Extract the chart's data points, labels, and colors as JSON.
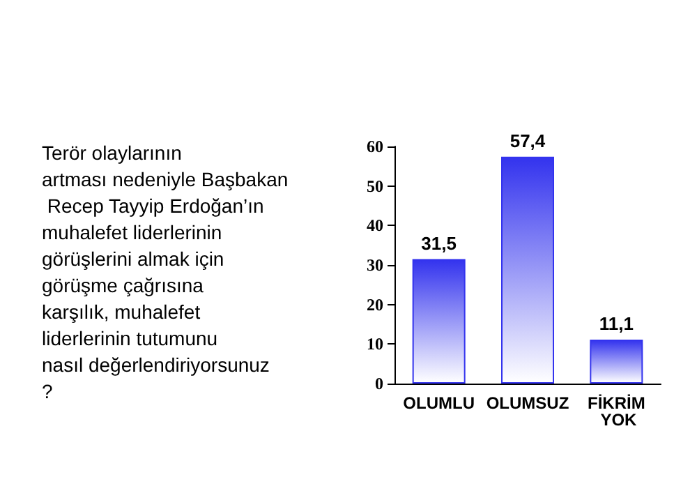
{
  "chart_data": {
    "type": "bar",
    "title": "Terör olaylarının artması nedeniyle Başbakan Recep Tayyip Erdoğan’ın muhalefet liderlerinin görüşlerini almak için görüşme çağrısına karşılık, muhalefet liderlerinin tutumunu nasıl değerlendiriyorsunuz?",
    "categories": [
      "OLUMLU",
      "OLUMSUZ",
      "FİKRİM YOK"
    ],
    "values": [
      31.5,
      57.4,
      11.1
    ],
    "value_labels": [
      "31,5",
      "57,4",
      "11,1"
    ],
    "color": "#3333ee",
    "ylim": [
      0,
      60
    ],
    "yticks": [
      0,
      10,
      20,
      30,
      40,
      50,
      60
    ],
    "grid": false
  }
}
